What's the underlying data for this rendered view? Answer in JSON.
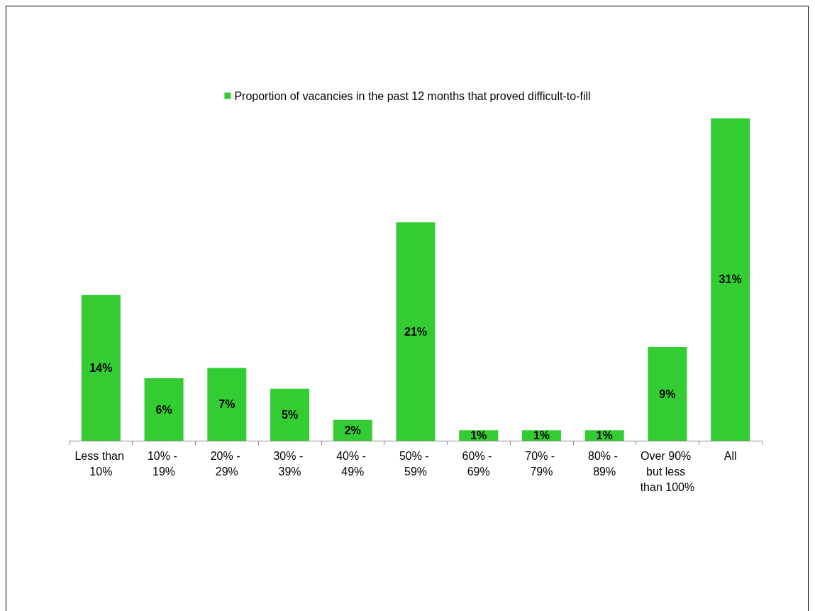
{
  "chart_data": {
    "type": "bar",
    "categories": [
      "Less than 10%",
      "10% - 19%",
      "20% - 29%",
      "30% - 39%",
      "40% - 49%",
      "50% - 59%",
      "60% - 69%",
      "70% - 79%",
      "80% - 89%",
      "Over 90% but less than 100%",
      "All"
    ],
    "series": [
      {
        "name": "Proportion of vacancies in the past 12 months that proved difficult-to-fill",
        "color": "#33cc33",
        "values": [
          14,
          6,
          7,
          5,
          2,
          21,
          1,
          1,
          1,
          9,
          31
        ],
        "value_labels": [
          "14%",
          "6%",
          "7%",
          "5%",
          "2%",
          "21%",
          "1%",
          "1%",
          "1%",
          "9%",
          "31%"
        ]
      }
    ],
    "legend": "top",
    "grid": false
  }
}
